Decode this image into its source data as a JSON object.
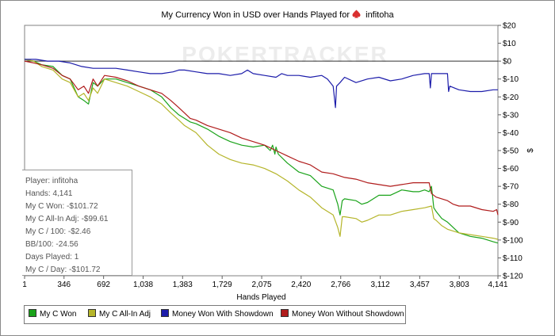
{
  "chart_data": {
    "type": "line",
    "title": "My Currency Won in USD over Hands Played for",
    "player_name": "infitoha",
    "watermark": "POKERTRACKER",
    "xlabel": "Hands Played",
    "ylabel": "$",
    "xlim": [
      1,
      4141
    ],
    "ylim": [
      -120,
      20
    ],
    "x_ticks": [
      "1",
      "346",
      "692",
      "1,038",
      "1,383",
      "1,729",
      "2,075",
      "2,420",
      "2,766",
      "3,112",
      "3,457",
      "3,803",
      "4,141"
    ],
    "x_tick_values": [
      1,
      346,
      692,
      1038,
      1383,
      1729,
      2075,
      2420,
      2766,
      3112,
      3457,
      3803,
      4141
    ],
    "y_ticks": [
      "$20",
      "$10",
      "$0",
      "$-10",
      "$-20",
      "$-30",
      "$-40",
      "$-50",
      "$-60",
      "$-70",
      "$-80",
      "$-90",
      "$-100",
      "$-110",
      "$-120"
    ],
    "y_tick_values": [
      20,
      10,
      0,
      -10,
      -20,
      -30,
      -40,
      -50,
      -60,
      -70,
      -80,
      -90,
      -100,
      -110,
      -120
    ],
    "series": [
      {
        "name": "My C Won",
        "color": "#1aa31a",
        "x": [
          1,
          80,
          150,
          250,
          330,
          400,
          470,
          520,
          560,
          600,
          640,
          700,
          800,
          900,
          1000,
          1100,
          1200,
          1280,
          1350,
          1400,
          1450,
          1500,
          1600,
          1700,
          1800,
          1900,
          2000,
          2100,
          2150,
          2170,
          2190,
          2200,
          2220,
          2300,
          2400,
          2500,
          2600,
          2700,
          2740,
          2760,
          2780,
          2800,
          2900,
          2950,
          3000,
          3100,
          3200,
          3300,
          3400,
          3450,
          3500,
          3540,
          3560,
          3580,
          3600,
          3650,
          3700,
          3750,
          3800,
          3900,
          4000,
          4100,
          4141
        ],
        "y": [
          1,
          0,
          -2,
          -3,
          -8,
          -10,
          -20,
          -22,
          -24,
          -12,
          -14,
          -10,
          -10,
          -12,
          -14,
          -16,
          -20,
          -26,
          -30,
          -32,
          -34,
          -35,
          -38,
          -42,
          -45,
          -47,
          -48,
          -47,
          -50,
          -47,
          -52,
          -48,
          -52,
          -57,
          -62,
          -64,
          -70,
          -72,
          -80,
          -86,
          -78,
          -77,
          -78,
          -80,
          -79,
          -75,
          -75,
          -72,
          -73,
          -73,
          -72,
          -73,
          -70,
          -82,
          -84,
          -88,
          -90,
          -93,
          -96,
          -98,
          -99,
          -101,
          -101.72
        ]
      },
      {
        "name": "My C All-In Adj",
        "color": "#b5b52a",
        "x": [
          1,
          80,
          150,
          250,
          330,
          400,
          470,
          520,
          560,
          600,
          640,
          700,
          800,
          900,
          1000,
          1100,
          1200,
          1280,
          1350,
          1400,
          1450,
          1500,
          1600,
          1700,
          1800,
          1900,
          2000,
          2100,
          2200,
          2300,
          2400,
          2500,
          2600,
          2700,
          2740,
          2760,
          2780,
          2800,
          2900,
          2950,
          3000,
          3100,
          3200,
          3300,
          3400,
          3500,
          3560,
          3580,
          3600,
          3650,
          3700,
          3750,
          3800,
          3900,
          4000,
          4100,
          4141
        ],
        "y": [
          1,
          0,
          -3,
          -5,
          -10,
          -12,
          -20,
          -18,
          -22,
          -15,
          -18,
          -10,
          -12,
          -14,
          -17,
          -20,
          -24,
          -29,
          -33,
          -36,
          -38,
          -40,
          -47,
          -52,
          -55,
          -57,
          -58,
          -60,
          -63,
          -67,
          -72,
          -76,
          -82,
          -86,
          -93,
          -98,
          -87,
          -87,
          -88,
          -90,
          -89,
          -86,
          -86,
          -84,
          -83,
          -82,
          -81,
          -88,
          -89,
          -92,
          -94,
          -95,
          -96,
          -97,
          -98,
          -99,
          -99.61
        ]
      },
      {
        "name": "Money Won With Showdown",
        "color": "#1c1caa",
        "x": [
          1,
          100,
          200,
          300,
          400,
          500,
          600,
          700,
          800,
          900,
          1000,
          1100,
          1200,
          1300,
          1350,
          1400,
          1500,
          1600,
          1650,
          1700,
          1800,
          1900,
          1950,
          2000,
          2100,
          2200,
          2250,
          2300,
          2400,
          2500,
          2600,
          2650,
          2700,
          2720,
          2730,
          2760,
          2800,
          2900,
          3000,
          3100,
          3200,
          3300,
          3400,
          3500,
          3540,
          3550,
          3560,
          3700,
          3710,
          3720,
          3800,
          3900,
          4000,
          4100,
          4141
        ],
        "y": [
          1,
          1,
          0,
          0,
          -1,
          -3,
          -4,
          -4,
          -4,
          -5,
          -6,
          -7,
          -7,
          -6,
          -5,
          -5,
          -6,
          -7,
          -7,
          -7,
          -8,
          -7,
          -5,
          -7,
          -8,
          -9,
          -7,
          -8,
          -8,
          -9,
          -8,
          -10,
          -14,
          -26,
          -14,
          -12,
          -9,
          -12,
          -10,
          -9,
          -11,
          -10,
          -8,
          -7,
          -7,
          -15,
          -7,
          -7,
          -17,
          -14,
          -16,
          -17,
          -17,
          -16,
          -16
        ]
      },
      {
        "name": "Money Won Without Showdown",
        "color": "#b01c1c",
        "x": [
          1,
          80,
          150,
          250,
          330,
          400,
          470,
          520,
          560,
          600,
          640,
          700,
          800,
          900,
          1000,
          1100,
          1200,
          1280,
          1350,
          1400,
          1450,
          1500,
          1600,
          1700,
          1800,
          1900,
          2000,
          2100,
          2200,
          2300,
          2400,
          2500,
          2600,
          2700,
          2800,
          2900,
          3000,
          3100,
          3200,
          3300,
          3400,
          3500,
          3540,
          3560,
          3600,
          3700,
          3750,
          3800,
          3900,
          4000,
          4100,
          4130,
          4141
        ],
        "y": [
          0,
          -1,
          -2,
          -4,
          -8,
          -10,
          -16,
          -14,
          -18,
          -10,
          -14,
          -8,
          -9,
          -11,
          -14,
          -16,
          -18,
          -22,
          -26,
          -29,
          -32,
          -33,
          -36,
          -38,
          -40,
          -43,
          -45,
          -47,
          -50,
          -53,
          -56,
          -58,
          -62,
          -63,
          -65,
          -66,
          -68,
          -69,
          -70,
          -69,
          -68,
          -68,
          -68,
          -74,
          -76,
          -78,
          -80,
          -81,
          -81,
          -83,
          -84,
          -83,
          -86
        ]
      }
    ]
  },
  "stats": {
    "player": "Player: infitoha",
    "hands": "Hands: 4,141",
    "won": "My C Won: -$101.72",
    "allin_adj": "My C All-In Adj: -$99.61",
    "per100": "My C / 100: -$2.46",
    "bb100": "BB/100: -24.56",
    "days_played": "Days Played: 1",
    "per_day": "My C / Day: -$101.72"
  },
  "legend": {
    "items": [
      {
        "label": "My C Won",
        "color": "#1aa31a"
      },
      {
        "label": "My C All-In Adj",
        "color": "#b5b52a"
      },
      {
        "label": "Money Won With Showdown",
        "color": "#1c1caa"
      },
      {
        "label": "Money Won Without Showdown",
        "color": "#b01c1c"
      }
    ]
  }
}
